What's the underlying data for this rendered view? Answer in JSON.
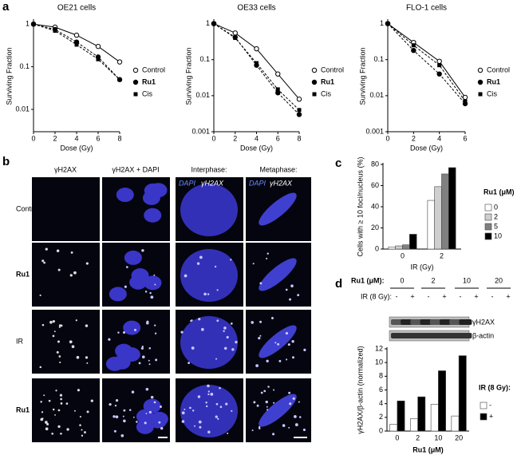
{
  "panel_labels": [
    "a",
    "b",
    "c",
    "d"
  ],
  "chart_data": [
    {
      "type": "line",
      "title": "OE21 cells",
      "xlabel": "Dose (Gy)",
      "ylabel": "Surviving Fraction",
      "ylog": true,
      "x": [
        0,
        2,
        4,
        6,
        8
      ],
      "xlim": [
        0,
        8
      ],
      "xticks": [
        0,
        2,
        4,
        6,
        8
      ],
      "ylim": [
        0.003,
        1.2
      ],
      "yticks": [
        0.01,
        0.1,
        1
      ],
      "series": [
        {
          "name": "Control",
          "color": "#000000",
          "marker": "circle-open",
          "dashed": false,
          "values": [
            1,
            0.85,
            0.55,
            0.3,
            0.13
          ]
        },
        {
          "name": "Ru1",
          "color": "#000000",
          "marker": "circle",
          "dashed": true,
          "values": [
            1,
            0.75,
            0.38,
            0.17,
            0.05
          ]
        },
        {
          "name": "Cis",
          "color": "#000000",
          "marker": "square",
          "dashed": true,
          "values": [
            1,
            0.7,
            0.33,
            0.15,
            0.05
          ]
        }
      ]
    },
    {
      "type": "line",
      "title": "OE33 cells",
      "xlabel": "Dose (Gy)",
      "ylabel": "Surviving Fraction",
      "ylog": true,
      "x": [
        0,
        2,
        4,
        6,
        8
      ],
      "xlim": [
        0,
        8
      ],
      "xticks": [
        0,
        2,
        4,
        6,
        8
      ],
      "ylim": [
        0.001,
        1.2
      ],
      "yticks": [
        0.001,
        0.01,
        0.1,
        1
      ],
      "series": [
        {
          "name": "Control",
          "color": "#000000",
          "marker": "circle-open",
          "dashed": false,
          "values": [
            1,
            0.55,
            0.2,
            0.04,
            0.008
          ]
        },
        {
          "name": "Ru1",
          "color": "#000000",
          "marker": "circle",
          "dashed": true,
          "values": [
            1,
            0.42,
            0.07,
            0.012,
            0.003
          ]
        },
        {
          "name": "Cis",
          "color": "#000000",
          "marker": "square",
          "dashed": true,
          "values": [
            1,
            0.4,
            0.08,
            0.015,
            0.004
          ]
        }
      ]
    },
    {
      "type": "line",
      "title": "FLO-1 cells",
      "xlabel": "Dose (Gy)",
      "ylabel": "Surviving Fraction",
      "ylog": true,
      "x": [
        0,
        2,
        4,
        6
      ],
      "xlim": [
        0,
        6
      ],
      "xticks": [
        0,
        2,
        4,
        6
      ],
      "ylim": [
        0.001,
        1.2
      ],
      "yticks": [
        0.001,
        0.01,
        0.1,
        1
      ],
      "series": [
        {
          "name": "Control",
          "color": "#000000",
          "marker": "circle-open",
          "dashed": false,
          "values": [
            1,
            0.3,
            0.09,
            0.009
          ]
        },
        {
          "name": "Ru1",
          "color": "#000000",
          "marker": "circle",
          "dashed": true,
          "values": [
            1,
            0.18,
            0.04,
            0.006
          ]
        },
        {
          "name": "Cis",
          "color": "#000000",
          "marker": "square",
          "dashed": true,
          "values": [
            1,
            0.25,
            0.07,
            0.007
          ]
        }
      ]
    },
    {
      "type": "bar",
      "xlabel": "IR (Gy)",
      "ylabel": "Cells with ≥ 10 foci/nucleus (%)",
      "legend_title": "Ru1 (μM)",
      "categories": [
        "0",
        "2"
      ],
      "ylim": [
        0,
        80
      ],
      "yticks": [
        0,
        20,
        40,
        60,
        80
      ],
      "series": [
        {
          "name": "0",
          "color": "#ffffff",
          "values": [
            2,
            46
          ]
        },
        {
          "name": "2",
          "color": "#cfcfcf",
          "values": [
            3,
            59
          ]
        },
        {
          "name": "5",
          "color": "#808080",
          "values": [
            4,
            71
          ]
        },
        {
          "name": "10",
          "color": "#000000",
          "values": [
            14,
            77
          ]
        }
      ]
    },
    {
      "type": "bar",
      "xlabel": "Ru1 (μM)",
      "ylabel": "γH2AX/β-actin (normalized)",
      "legend_title": "IR (8 Gy):",
      "categories": [
        "0",
        "2",
        "10",
        "20"
      ],
      "ylim": [
        0,
        12
      ],
      "yticks": [
        0,
        2,
        4,
        6,
        8,
        10,
        12
      ],
      "series": [
        {
          "name": "-",
          "color": "#ffffff",
          "values": [
            1,
            1.8,
            3.9,
            2.2
          ]
        },
        {
          "name": "+",
          "color": "#000000",
          "values": [
            4.4,
            5,
            8.8,
            11
          ]
        }
      ]
    }
  ],
  "microscopy": {
    "column_headers": [
      "γH2AX",
      "γH2AX + DAPI",
      "Interphase:",
      "Metaphase:"
    ],
    "row_labels": [
      "Control",
      "Ru1",
      "IR",
      "Ru1 + IR"
    ],
    "channel_labels": [
      "DAPI",
      "γH2AX",
      "DAPI",
      "γH2AX"
    ]
  },
  "blot": {
    "ru1_label": "Ru1 (μM):",
    "ru1_doses": [
      "0",
      "2",
      "10",
      "20"
    ],
    "ir_label": "IR (8 Gy):",
    "ir_marks": [
      "-",
      "+",
      "-",
      "+",
      "-",
      "+",
      "-",
      "+"
    ],
    "bands": [
      "γH2AX",
      "β-actin"
    ]
  }
}
